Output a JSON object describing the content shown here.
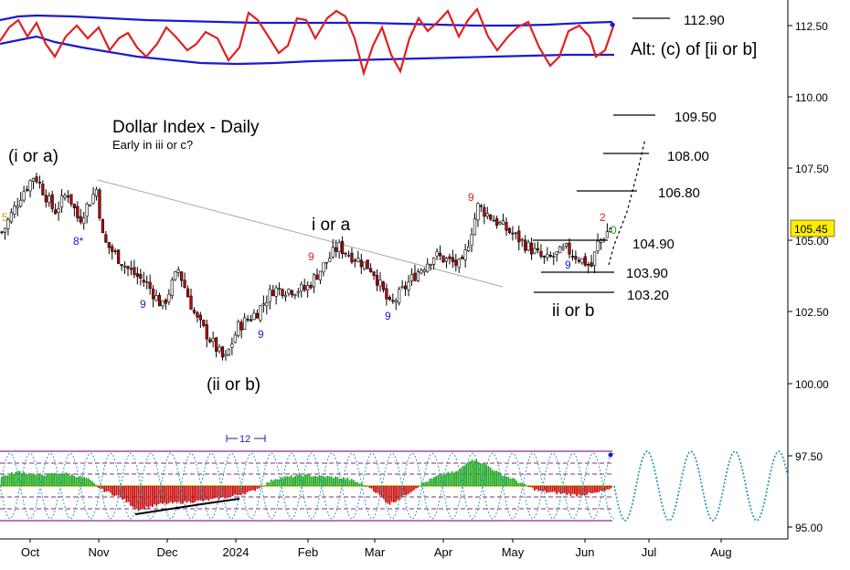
{
  "chart_data": {
    "type": "candlestick",
    "title": "Dollar Index - Daily",
    "subtitle": "Early in iii or c?",
    "x_ticks": [
      "Oct",
      "Nov",
      "Dec",
      "2024",
      "Feb",
      "Mar",
      "Apr",
      "May",
      "Jun",
      "Jul",
      "Aug"
    ],
    "y_ticks": [
      "112.50",
      "110.00",
      "107.50",
      "105.00",
      "102.50",
      "100.00",
      "97.50",
      "95.00"
    ],
    "ylim": [
      94.5,
      114.0
    ],
    "last_price": "105.45",
    "approx_closes": [
      {
        "date": "Sep 19",
        "value": 105.3
      },
      {
        "date": "Sep 27",
        "value": 106.6
      },
      {
        "date": "Oct 3",
        "value": 107.3
      },
      {
        "date": "Oct 12",
        "value": 106.0
      },
      {
        "date": "Oct 18",
        "value": 106.7
      },
      {
        "date": "Oct 23",
        "value": 105.7
      },
      {
        "date": "Oct 31",
        "value": 106.8
      },
      {
        "date": "Nov 3",
        "value": 105.0
      },
      {
        "date": "Nov 14",
        "value": 104.0
      },
      {
        "date": "Nov 22",
        "value": 103.5
      },
      {
        "date": "Nov 29",
        "value": 102.7
      },
      {
        "date": "Dec 6",
        "value": 104.0
      },
      {
        "date": "Dec 14",
        "value": 102.3
      },
      {
        "date": "Dec 27",
        "value": 100.8
      },
      {
        "date": "Jan 2",
        "value": 102.0
      },
      {
        "date": "Jan 10",
        "value": 102.5
      },
      {
        "date": "Jan 17",
        "value": 103.3
      },
      {
        "date": "Jan 31",
        "value": 103.3
      },
      {
        "date": "Feb 14",
        "value": 104.8
      },
      {
        "date": "Feb 29",
        "value": 104.0
      },
      {
        "date": "Mar 8",
        "value": 102.7
      },
      {
        "date": "Mar 19",
        "value": 103.8
      },
      {
        "date": "Mar 28",
        "value": 104.5
      },
      {
        "date": "Apr 9",
        "value": 104.1
      },
      {
        "date": "Apr 16",
        "value": 106.2
      },
      {
        "date": "Apr 25",
        "value": 105.6
      },
      {
        "date": "May 3",
        "value": 105.1
      },
      {
        "date": "May 15",
        "value": 104.3
      },
      {
        "date": "May 24",
        "value": 104.7
      },
      {
        "date": "Jun 4",
        "value": 104.1
      },
      {
        "date": "Jun 7",
        "value": 104.9
      },
      {
        "date": "Jun 13",
        "value": 105.45
      }
    ],
    "wave_labels": [
      "(i or a)",
      "(ii or b)",
      "i or a",
      "ii or b"
    ],
    "count_labels": [
      {
        "text": "5",
        "color": "#c8a000"
      },
      {
        "text": "8*",
        "color": "#1a1ad0"
      },
      {
        "text": "9",
        "color": "#1a1ad0"
      },
      {
        "text": "9",
        "color": "#1a1ad0"
      },
      {
        "text": "9",
        "color": "#e02020"
      },
      {
        "text": "9",
        "color": "#1a1ad0"
      },
      {
        "text": "9",
        "color": "#e02020"
      },
      {
        "text": "9",
        "color": "#1a1ad0"
      },
      {
        "text": "2",
        "color": "#e02020"
      },
      {
        "text": "0",
        "color": "#20a020"
      }
    ],
    "levels": [
      "112.90",
      "109.50",
      "108.00",
      "106.80",
      "104.90",
      "103.90",
      "103.20"
    ],
    "alt_label": "Alt: (c) of [ii or b]",
    "cycle_label": "12",
    "colors": {
      "oscillator": "#e02020",
      "bands": "#1a1ad0",
      "up_candle": "#ffffff",
      "down_candle": "#c00000",
      "histogram_up": "#22aa22",
      "histogram_down": "#cc1111",
      "cycle": "#2a9db0",
      "channel": "#8a2a8a",
      "price_badge": "#ffee00"
    }
  }
}
